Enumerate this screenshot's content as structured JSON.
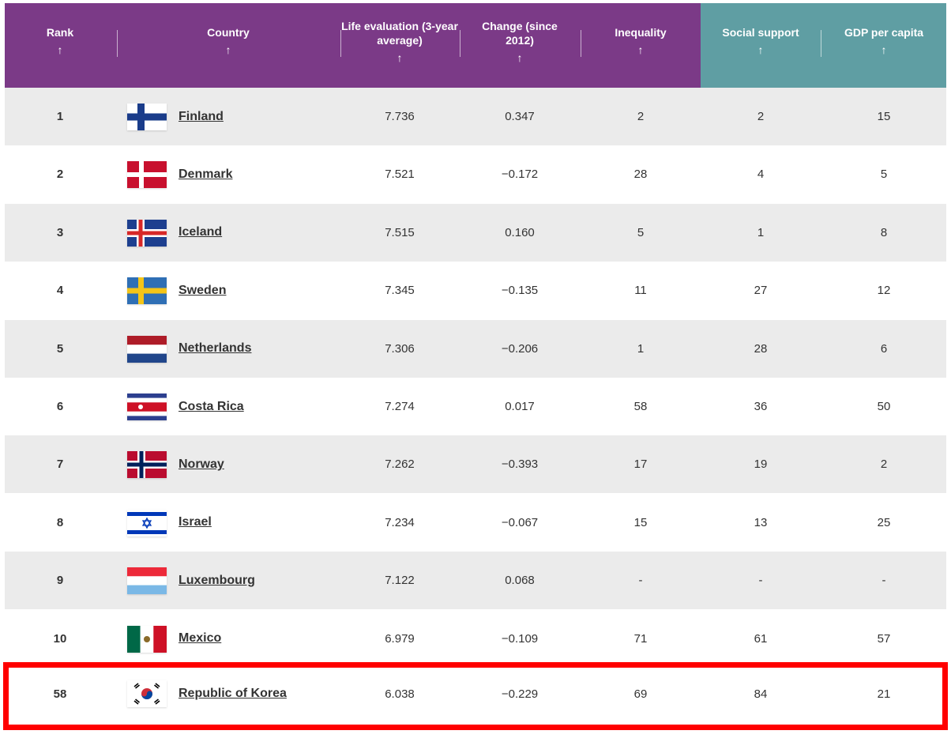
{
  "header": {
    "columns": [
      {
        "key": "rank",
        "label": "Rank"
      },
      {
        "key": "country",
        "label": "Country"
      },
      {
        "key": "life",
        "label": "Life evaluation (3-year average)"
      },
      {
        "key": "change",
        "label": "Change (since 2012)"
      },
      {
        "key": "inequality",
        "label": "Inequality"
      },
      {
        "key": "social",
        "label": "Social support"
      },
      {
        "key": "gdp",
        "label": "GDP per capita"
      }
    ],
    "arrow": "↑",
    "colors": {
      "purple": "#7b3a87",
      "teal": "#5f9ea3",
      "highlight": "#ff0000"
    }
  },
  "rows": [
    {
      "rank": "1",
      "country": "Finland",
      "flag": "finland",
      "life": "7.736",
      "change": "0.347",
      "inequality": "2",
      "social": "2",
      "gdp": "15"
    },
    {
      "rank": "2",
      "country": "Denmark",
      "flag": "denmark",
      "life": "7.521",
      "change": "−0.172",
      "inequality": "28",
      "social": "4",
      "gdp": "5"
    },
    {
      "rank": "3",
      "country": "Iceland",
      "flag": "iceland",
      "life": "7.515",
      "change": "0.160",
      "inequality": "5",
      "social": "1",
      "gdp": "8"
    },
    {
      "rank": "4",
      "country": "Sweden",
      "flag": "sweden",
      "life": "7.345",
      "change": "−0.135",
      "inequality": "11",
      "social": "27",
      "gdp": "12"
    },
    {
      "rank": "5",
      "country": "Netherlands",
      "flag": "netherlands",
      "life": "7.306",
      "change": "−0.206",
      "inequality": "1",
      "social": "28",
      "gdp": "6"
    },
    {
      "rank": "6",
      "country": "Costa Rica",
      "flag": "costa-rica",
      "life": "7.274",
      "change": "0.017",
      "inequality": "58",
      "social": "36",
      "gdp": "50"
    },
    {
      "rank": "7",
      "country": "Norway",
      "flag": "norway",
      "life": "7.262",
      "change": "−0.393",
      "inequality": "17",
      "social": "19",
      "gdp": "2"
    },
    {
      "rank": "8",
      "country": "Israel",
      "flag": "israel",
      "life": "7.234",
      "change": "−0.067",
      "inequality": "15",
      "social": "13",
      "gdp": "25"
    },
    {
      "rank": "9",
      "country": "Luxembourg",
      "flag": "luxembourg",
      "life": "7.122",
      "change": "0.068",
      "inequality": "-",
      "social": "-",
      "gdp": "-"
    },
    {
      "rank": "10",
      "country": "Mexico",
      "flag": "mexico",
      "life": "6.979",
      "change": "−0.109",
      "inequality": "71",
      "social": "61",
      "gdp": "57"
    },
    {
      "rank": "58",
      "country": "Republic of Korea",
      "flag": "korea",
      "life": "6.038",
      "change": "−0.229",
      "inequality": "69",
      "social": "84",
      "gdp": "21"
    }
  ]
}
